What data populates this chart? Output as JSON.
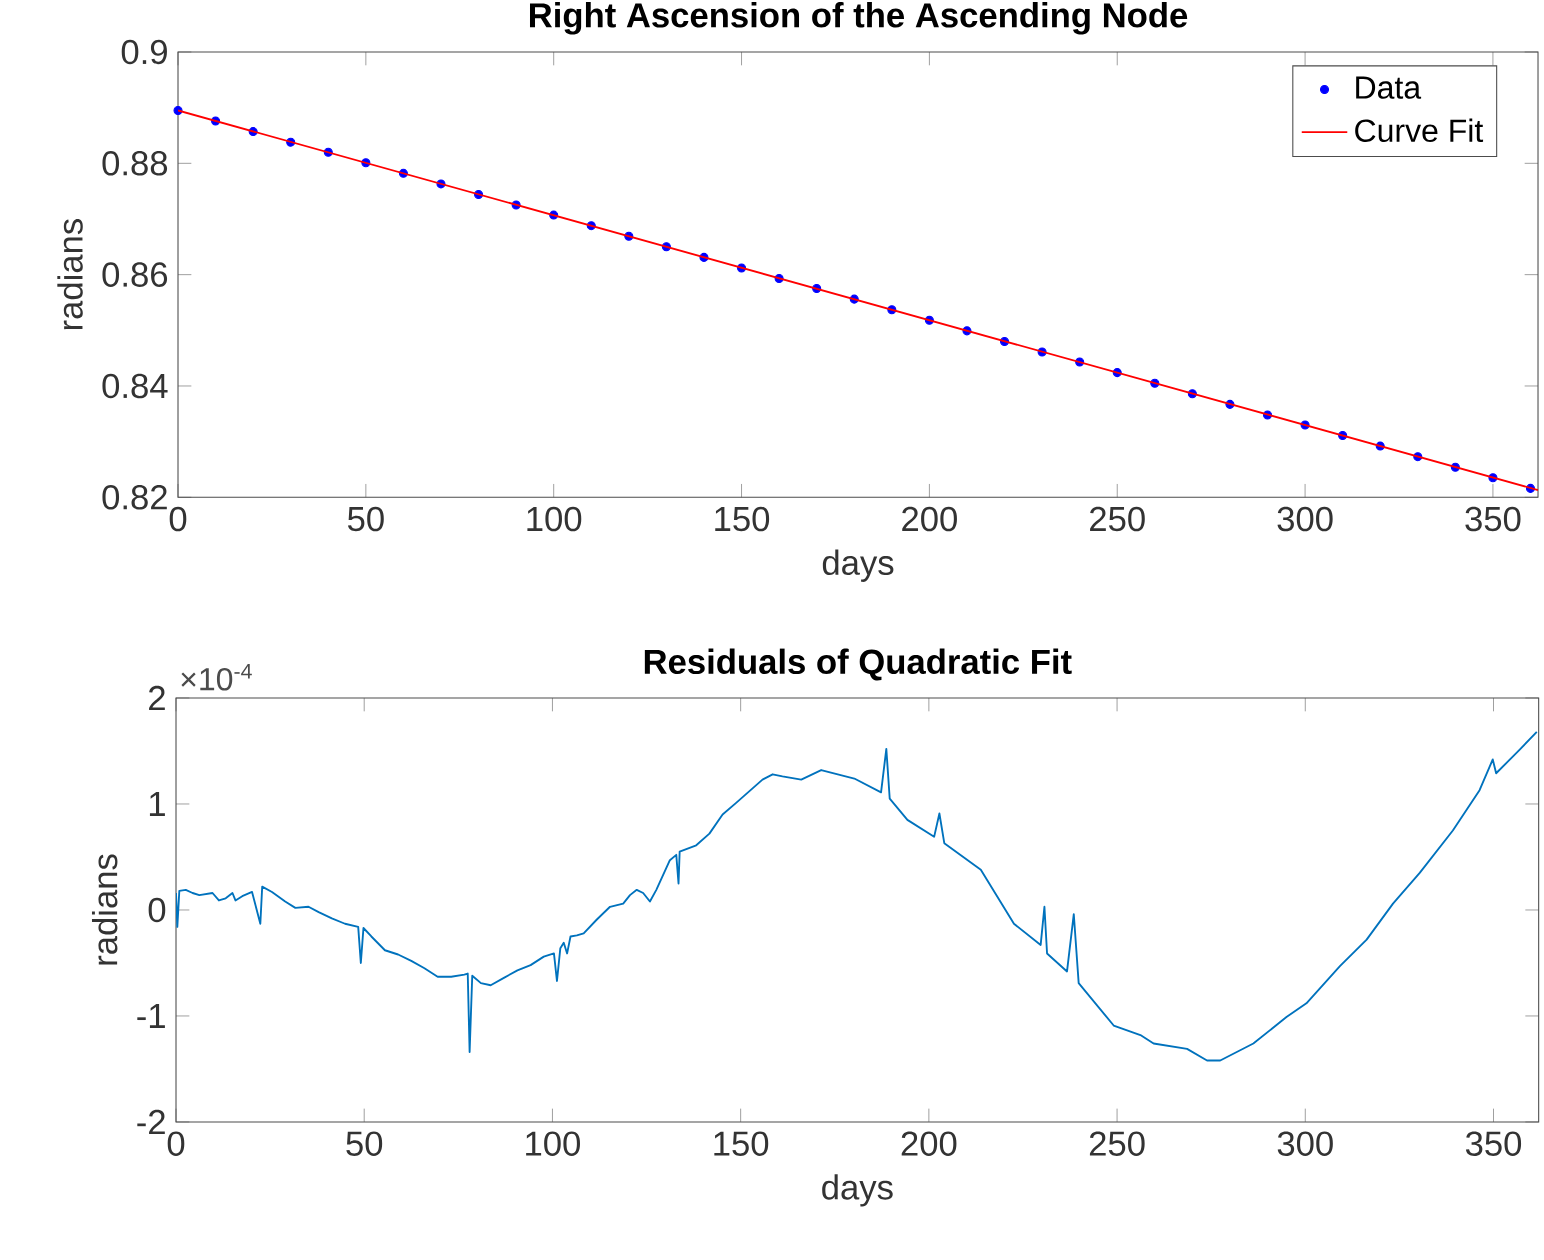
{
  "chart_data": [
    {
      "type": "scatter",
      "title": "Right Ascension of the Ascending Node",
      "xlabel": "days",
      "ylabel": "radians",
      "xlim": [
        0,
        362
      ],
      "ylim": [
        0.82,
        0.9
      ],
      "xticks": [
        0,
        50,
        100,
        150,
        200,
        250,
        300,
        350
      ],
      "yticks": [
        0.82,
        0.84,
        0.86,
        0.88,
        0.9
      ],
      "legend": "top right",
      "series": [
        {
          "name": "Data",
          "type": "scatter",
          "marker": "circle",
          "color": "#0000ff",
          "x": [
            0,
            10,
            20,
            30,
            40,
            50,
            60,
            70,
            80,
            90,
            100,
            110,
            120,
            130,
            140,
            150,
            160,
            170,
            180,
            190,
            200,
            210,
            220,
            230,
            240,
            250,
            260,
            270,
            280,
            290,
            300,
            310,
            320,
            330,
            340,
            350,
            360
          ],
          "values": [
            0.8895,
            0.8876,
            0.8857,
            0.8838,
            0.882,
            0.8801,
            0.8782,
            0.8763,
            0.8744,
            0.8725,
            0.8707,
            0.8688,
            0.8669,
            0.865,
            0.8631,
            0.8612,
            0.8593,
            0.8575,
            0.8556,
            0.8537,
            0.8518,
            0.8499,
            0.848,
            0.8461,
            0.8443,
            0.8424,
            0.8405,
            0.8386,
            0.8367,
            0.8348,
            0.833,
            0.8311,
            0.8292,
            0.8273,
            0.8254,
            0.8235,
            0.8216
          ]
        },
        {
          "name": "Curve Fit",
          "type": "line",
          "marker": "none",
          "color": "#ff0000",
          "x": [
            0,
            362
          ],
          "values": [
            0.8895,
            0.8213
          ]
        }
      ]
    },
    {
      "type": "line",
      "title": "Residuals of Quadratic Fit",
      "xlabel": "days",
      "ylabel": "radians",
      "annotations": [
        "×10$^{-4}$"
      ],
      "xlim": [
        0,
        362
      ],
      "ylim": [
        -2,
        2
      ],
      "xticks": [
        0,
        50,
        100,
        150,
        200,
        250,
        300,
        350
      ],
      "yticks": [
        -2,
        -1,
        0,
        1,
        2
      ],
      "series": [
        {
          "color": "#0072bd",
          "x": [
            0,
            0.35,
            0.88,
            2.6,
            4.4,
            6.2,
            9.7,
            11.4,
            13.2,
            15.0,
            15.8,
            17.6,
            20.2,
            22.4,
            22.9,
            25.5,
            29.0,
            31.7,
            35.2,
            37.9,
            41.4,
            44.9,
            48.4,
            49.1,
            49.8,
            51.9,
            55.5,
            59.0,
            62.5,
            66.0,
            69.5,
            73.1,
            76.6,
            77.5,
            78.0,
            78.7,
            81.0,
            83.6,
            87.1,
            90.7,
            94.2,
            97.7,
            100.4,
            101.2,
            102.1,
            103.0,
            103.9,
            104.8,
            106.5,
            108.3,
            111.8,
            115.3,
            118.8,
            120.6,
            122.4,
            124.1,
            125.9,
            127.6,
            131.2,
            132.9,
            133.5,
            133.8,
            138.2,
            141.7,
            145.2,
            148.8,
            152.3,
            155.8,
            158.5,
            161.1,
            166.1,
            171.4,
            180.2,
            187.3,
            188.7,
            189.6,
            194.3,
            201.4,
            202.8,
            204.1,
            213.8,
            222.6,
            229.7,
            230.7,
            231.4,
            236.7,
            238.5,
            239.8,
            249.1,
            256.2,
            259.7,
            268.6,
            273.9,
            277.4,
            286.2,
            295.0,
            300.3,
            309.2,
            316.3,
            323.3,
            330.4,
            339.2,
            346.3,
            349.8,
            350.7,
            356.9,
            361.5
          ],
          "values": [
            0.16,
            -0.16,
            0.18,
            0.19,
            0.16,
            0.14,
            0.16,
            0.09,
            0.11,
            0.16,
            0.09,
            0.13,
            0.17,
            -0.13,
            0.22,
            0.17,
            0.08,
            0.02,
            0.03,
            -0.02,
            -0.08,
            -0.13,
            -0.16,
            -0.5,
            -0.17,
            -0.25,
            -0.38,
            -0.42,
            -0.48,
            -0.55,
            -0.63,
            -0.63,
            -0.61,
            -0.6,
            -1.34,
            -0.62,
            -0.69,
            -0.71,
            -0.64,
            -0.57,
            -0.52,
            -0.44,
            -0.41,
            -0.67,
            -0.36,
            -0.31,
            -0.41,
            -0.25,
            -0.24,
            -0.22,
            -0.09,
            0.03,
            0.06,
            0.14,
            0.19,
            0.16,
            0.08,
            0.19,
            0.47,
            0.52,
            0.25,
            0.55,
            0.61,
            0.72,
            0.9,
            1.01,
            1.12,
            1.23,
            1.28,
            1.26,
            1.23,
            1.32,
            1.24,
            1.11,
            1.52,
            1.05,
            0.85,
            0.69,
            0.91,
            0.63,
            0.38,
            -0.13,
            -0.33,
            0.03,
            -0.41,
            -0.58,
            -0.04,
            -0.69,
            -1.09,
            -1.18,
            -1.26,
            -1.31,
            -1.42,
            -1.42,
            -1.26,
            -1.01,
            -0.88,
            -0.53,
            -0.28,
            0.06,
            0.35,
            0.75,
            1.13,
            1.42,
            1.29,
            1.51,
            1.68
          ]
        }
      ]
    }
  ]
}
